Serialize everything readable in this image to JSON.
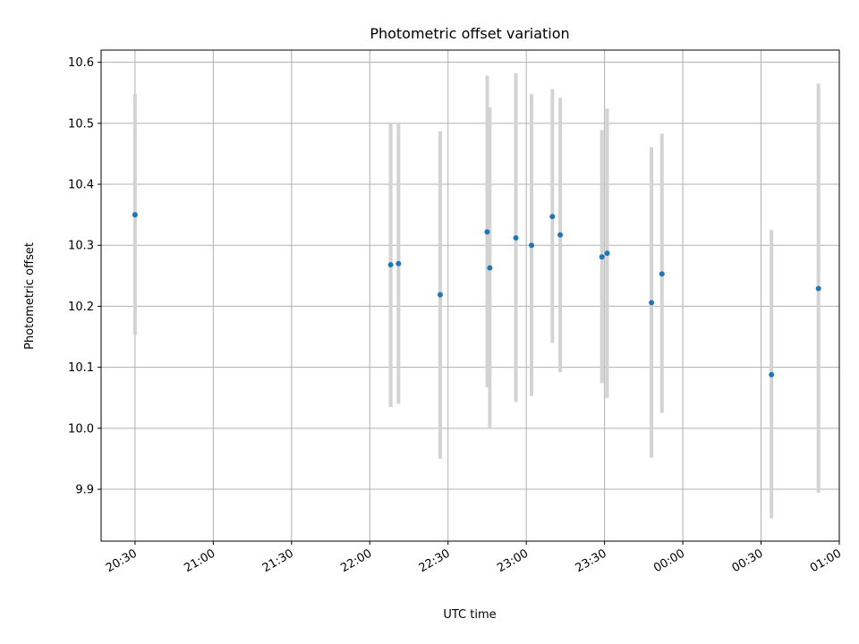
{
  "chart_data": {
    "type": "scatter",
    "title": "Photometric offset variation",
    "xlabel": "UTC time",
    "ylabel": "Photometric offset",
    "x_is_time": true,
    "x_ticks": [
      "20:30",
      "21:00",
      "21:30",
      "22:00",
      "22:30",
      "23:00",
      "23:30",
      "00:00",
      "00:30",
      "01:00"
    ],
    "y_ticks": [
      9.9,
      10.0,
      10.1,
      10.2,
      10.3,
      10.4,
      10.5,
      10.6
    ],
    "xlim": [
      "20:17",
      "01:00"
    ],
    "ylim": [
      9.815,
      10.62
    ],
    "grid": true,
    "marker_color": "#1f77b4",
    "errorbar_color": "#d3d3d3",
    "points": [
      {
        "time": "20:30",
        "y": 10.35,
        "ylo": 10.153,
        "yhi": 10.548
      },
      {
        "time": "22:08",
        "y": 10.268,
        "ylo": 10.035,
        "yhi": 10.5
      },
      {
        "time": "22:11",
        "y": 10.27,
        "ylo": 10.04,
        "yhi": 10.5
      },
      {
        "time": "22:27",
        "y": 10.219,
        "ylo": 9.95,
        "yhi": 10.487
      },
      {
        "time": "22:45",
        "y": 10.322,
        "ylo": 10.067,
        "yhi": 10.578
      },
      {
        "time": "22:46",
        "y": 10.263,
        "ylo": 10.0,
        "yhi": 10.526
      },
      {
        "time": "22:56",
        "y": 10.312,
        "ylo": 10.043,
        "yhi": 10.582
      },
      {
        "time": "23:02",
        "y": 10.3,
        "ylo": 10.053,
        "yhi": 10.548
      },
      {
        "time": "23:10",
        "y": 10.347,
        "ylo": 10.14,
        "yhi": 10.556
      },
      {
        "time": "23:13",
        "y": 10.317,
        "ylo": 10.092,
        "yhi": 10.542
      },
      {
        "time": "23:29",
        "y": 10.281,
        "ylo": 10.074,
        "yhi": 10.489
      },
      {
        "time": "23:31",
        "y": 10.287,
        "ylo": 10.05,
        "yhi": 10.524
      },
      {
        "time": "23:48",
        "y": 10.206,
        "ylo": 9.952,
        "yhi": 10.461
      },
      {
        "time": "23:52",
        "y": 10.253,
        "ylo": 10.025,
        "yhi": 10.483
      },
      {
        "time": "00:34",
        "y": 10.088,
        "ylo": 9.852,
        "yhi": 10.325
      },
      {
        "time": "00:52",
        "y": 10.229,
        "ylo": 9.894,
        "yhi": 10.565
      }
    ]
  }
}
